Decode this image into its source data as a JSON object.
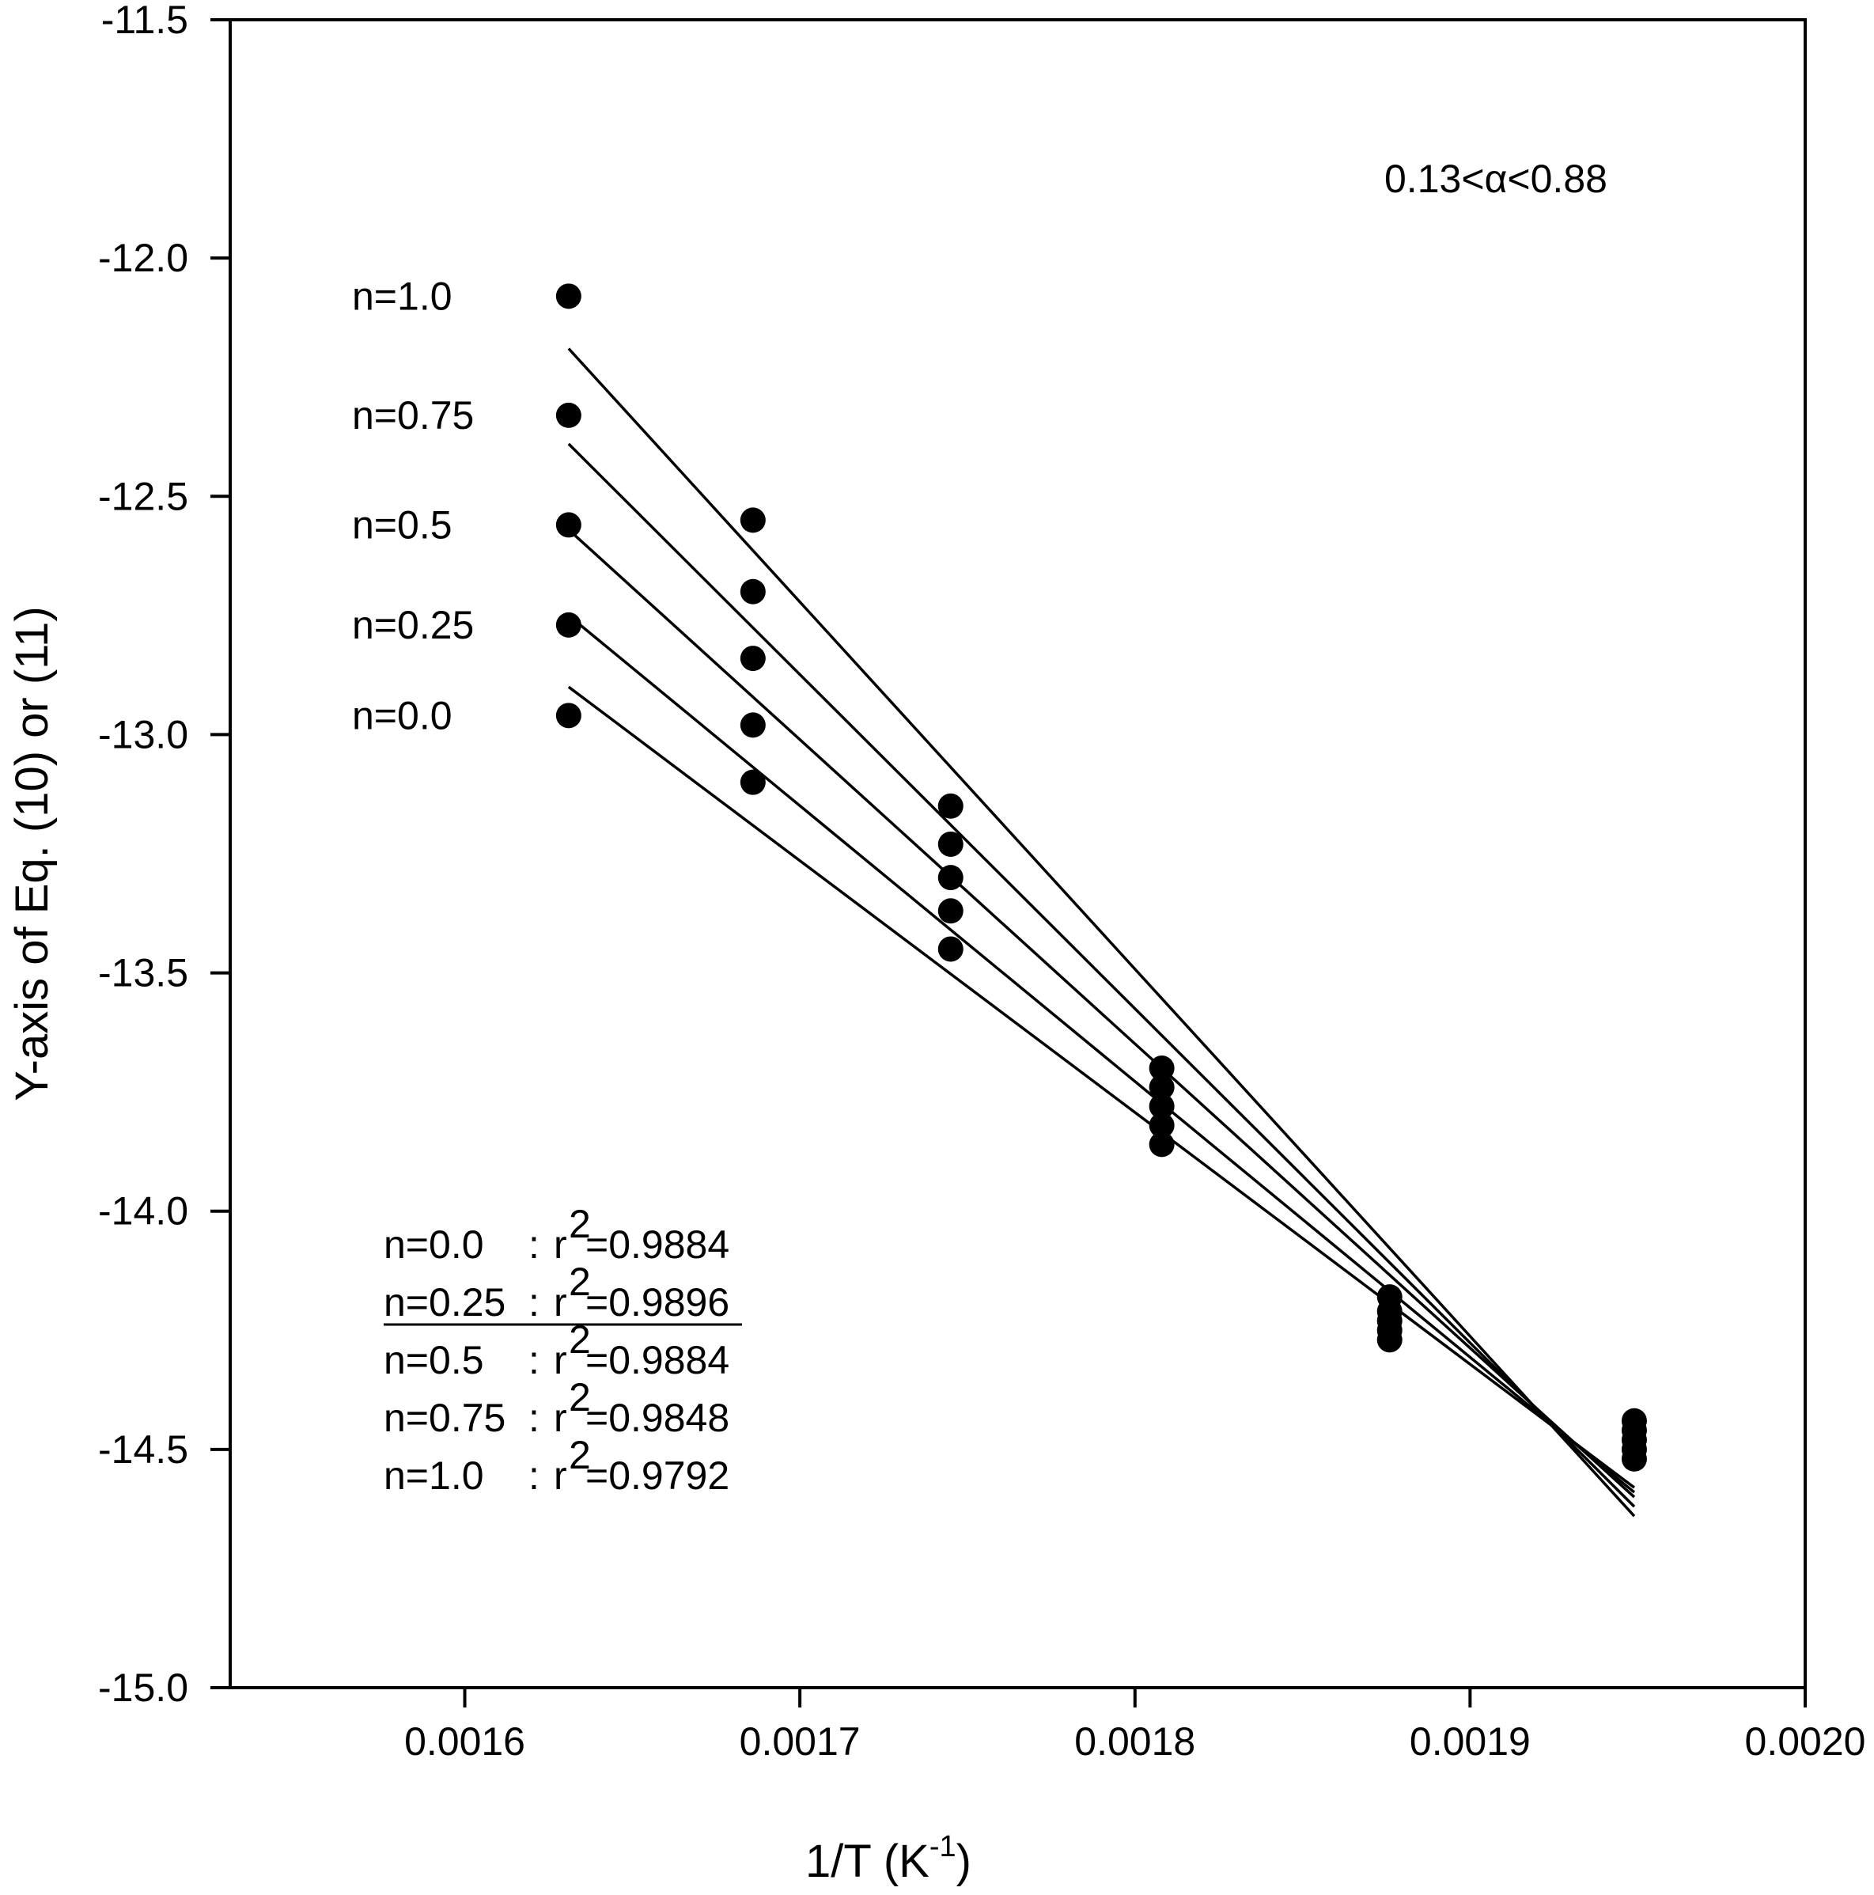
{
  "chart_data": {
    "type": "scatter",
    "title": "",
    "xlabel": "1/T (K",
    "xlabel_sup": "-1",
    "xlabel_close": ")",
    "ylabel": "Y-axis of Eq. (10) or (11)",
    "xlim": [
      0.00153,
      0.002
    ],
    "ylim": [
      -15.0,
      -11.5
    ],
    "xticks": [
      {
        "value": 0.0016,
        "label": "0.0016"
      },
      {
        "value": 0.0017,
        "label": "0.0017"
      },
      {
        "value": 0.0018,
        "label": "0.0018"
      },
      {
        "value": 0.0019,
        "label": "0.0019"
      },
      {
        "value": 0.002,
        "label": "0.0020"
      }
    ],
    "yticks": [
      {
        "value": -11.5,
        "label": "-11.5"
      },
      {
        "value": -12.0,
        "label": "-12.0"
      },
      {
        "value": -12.5,
        "label": "-12.5"
      },
      {
        "value": -13.0,
        "label": "-13.0"
      },
      {
        "value": -13.5,
        "label": "-13.5"
      },
      {
        "value": -14.0,
        "label": "-14.0"
      },
      {
        "value": -14.5,
        "label": "-14.5"
      },
      {
        "value": -15.0,
        "label": "-15.0"
      }
    ],
    "x": [
      0.001631,
      0.001686,
      0.001745,
      0.001808,
      0.001876,
      0.001949
    ],
    "series": [
      {
        "name": "n=1.0",
        "points": [
          -12.08,
          -12.55,
          -13.15,
          -13.7,
          -14.18,
          -14.44
        ],
        "fit": [
          [
            0.001631,
            -12.19
          ],
          [
            0.001949,
            -14.64
          ]
        ]
      },
      {
        "name": "n=0.75",
        "points": [
          -12.33,
          -12.7,
          -13.23,
          -13.74,
          -14.21,
          -14.46
        ],
        "fit": [
          [
            0.001631,
            -12.39
          ],
          [
            0.001949,
            -14.62
          ]
        ]
      },
      {
        "name": "n=0.5",
        "points": [
          -12.56,
          -12.84,
          -13.3,
          -13.78,
          -14.23,
          -14.48
        ],
        "fit": [
          [
            0.001631,
            -12.57
          ],
          [
            0.001949,
            -14.6
          ]
        ]
      },
      {
        "name": "n=0.25",
        "points": [
          -12.77,
          -12.98,
          -13.37,
          -13.82,
          -14.25,
          -14.5
        ],
        "fit": [
          [
            0.001631,
            -12.75
          ],
          [
            0.001949,
            -14.59
          ]
        ]
      },
      {
        "name": "n=0.0",
        "points": [
          -12.96,
          -13.1,
          -13.45,
          -13.86,
          -14.27,
          -14.52
        ],
        "fit": [
          [
            0.001631,
            -12.9
          ],
          [
            0.001949,
            -14.58
          ]
        ]
      }
    ],
    "series_labels": [
      "n=1.0",
      "n=0.75",
      "n=0.5",
      "n=0.25",
      "n=0.0"
    ],
    "annotation_alpha": "0.13<α<0.88",
    "r2_table": [
      {
        "n": "n=0.0",
        "sep": ":",
        "r": "r",
        "sup": "2",
        "val": "=0.9884",
        "underline": false
      },
      {
        "n": "n=0.25",
        "sep": ":",
        "r": "r",
        "sup": "2",
        "val": "=0.9896",
        "underline": true
      },
      {
        "n": "n=0.5",
        "sep": ":",
        "r": "r",
        "sup": "2",
        "val": "=0.9884",
        "underline": false
      },
      {
        "n": "n=0.75",
        "sep": ":",
        "r": "r",
        "sup": "2",
        "val": "=0.9848",
        "underline": false
      },
      {
        "n": "n=1.0",
        "sep": ":",
        "r": "r",
        "sup": "2",
        "val": "=0.9792",
        "underline": false
      }
    ]
  }
}
